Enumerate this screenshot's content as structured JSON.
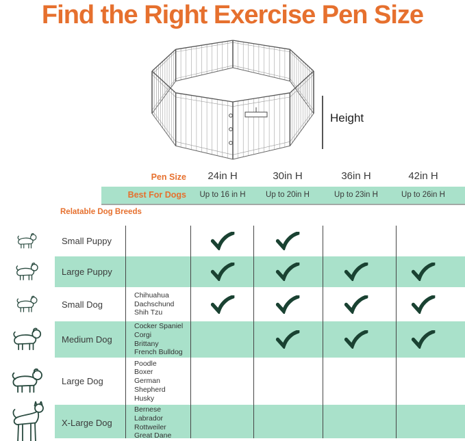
{
  "title": "Find the Right Exercise Pen Size",
  "pen": {
    "height_label": "Height"
  },
  "size_table": {
    "pen_size_label": "Pen Size",
    "best_for_label": "Best For Dogs",
    "columns": [
      {
        "size": "24in H",
        "best_for": "Up to 16 in H"
      },
      {
        "size": "30in H",
        "best_for": "Up to 20in H"
      },
      {
        "size": "36in H",
        "best_for": "Up to 23in H"
      },
      {
        "size": "42in H",
        "best_for": "Up to 26in H"
      }
    ]
  },
  "breeds_table": {
    "heading": "Relatable Dog Breeds",
    "rows": [
      {
        "name": "Small Puppy",
        "icon": "small-puppy",
        "breeds": [],
        "checks": [
          true,
          true,
          false,
          false
        ]
      },
      {
        "name": "Large Puppy",
        "icon": "large-puppy",
        "breeds": [],
        "checks": [
          true,
          true,
          true,
          true
        ]
      },
      {
        "name": "Small Dog",
        "icon": "small-dog",
        "breeds": [
          "Chihuahua",
          "Dachschund",
          "Shih Tzu"
        ],
        "checks": [
          true,
          true,
          true,
          true
        ]
      },
      {
        "name": "Medium Dog",
        "icon": "medium-dog",
        "breeds": [
          "Cocker Spaniel",
          "Corgi",
          "Brittany",
          "French Bulldog"
        ],
        "checks": [
          false,
          true,
          true,
          true
        ]
      },
      {
        "name": "Large Dog",
        "icon": "large-dog",
        "breeds": [
          "Poodle",
          "Boxer",
          "German",
          "Shepherd",
          "Husky"
        ],
        "checks": [
          false,
          false,
          false,
          false
        ]
      },
      {
        "name": "X-Large Dog",
        "icon": "x-large-dog",
        "breeds": [
          "Bernese",
          "Labrador",
          "Rottweiler",
          "Great Dane"
        ],
        "checks": [
          false,
          false,
          false,
          false
        ]
      }
    ]
  },
  "colors": {
    "accent_orange": "#E6702E",
    "band_mint": "#A9E1CA",
    "check_green": "#1A4232"
  }
}
